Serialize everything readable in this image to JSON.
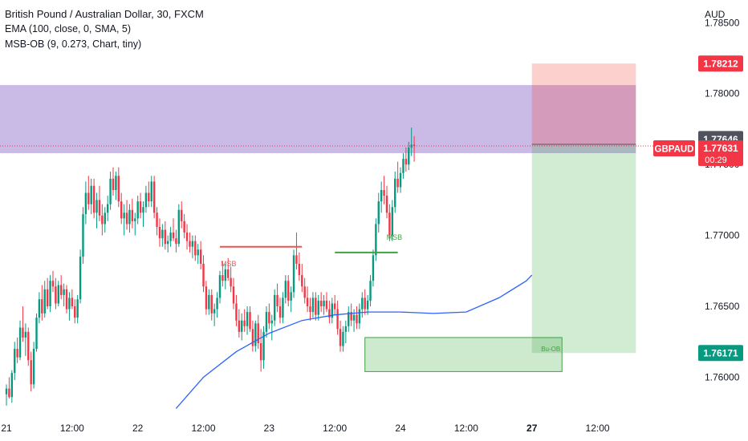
{
  "legend": {
    "title": "British Pound / Australian Dollar, 30, FXCM",
    "ema": "EMA (100, close, 0, SMA, 5)",
    "msbob": "MSB-OB (9, 0.273, Chart, tiny)"
  },
  "chart_data": {
    "type": "candlestick",
    "symbol": "GBPAUD",
    "currency": "AUD",
    "ylim": [
      1.7572,
      1.7866
    ],
    "y_ticks": [
      "1.78500",
      "1.78000",
      "1.77500",
      "1.77000",
      "1.76500",
      "1.76000"
    ],
    "x_ticks": [
      "21",
      "12:00",
      "22",
      "12:00",
      "23",
      "12:00",
      "24",
      "12:00",
      "27",
      "12:00"
    ],
    "x_tick_positions": [
      0,
      24,
      48,
      72,
      96,
      120,
      144,
      168,
      192,
      216
    ],
    "bar_range": [
      0,
      230
    ],
    "candles": [
      [
        1.7588,
        1.7595,
        1.758,
        1.7592
      ],
      [
        1.7592,
        1.76,
        1.7585,
        1.7586
      ],
      [
        1.7586,
        1.7605,
        1.7582,
        1.7603
      ],
      [
        1.7603,
        1.7625,
        1.7598,
        1.762
      ],
      [
        1.762,
        1.7628,
        1.761,
        1.7614
      ],
      [
        1.7614,
        1.764,
        1.7612,
        1.7635
      ],
      [
        1.7635,
        1.765,
        1.7625,
        1.7628
      ],
      [
        1.7628,
        1.7638,
        1.7615,
        1.7632
      ],
      [
        1.7632,
        1.7635,
        1.7608,
        1.7612
      ],
      [
        1.7612,
        1.7618,
        1.759,
        1.7595
      ],
      [
        1.7595,
        1.7625,
        1.7592,
        1.762
      ],
      [
        1.762,
        1.7645,
        1.7618,
        1.7642
      ],
      [
        1.7642,
        1.766,
        1.7638,
        1.7655
      ],
      [
        1.7655,
        1.7665,
        1.764,
        1.7645
      ],
      [
        1.7645,
        1.7668,
        1.7642,
        1.7662
      ],
      [
        1.7662,
        1.767,
        1.7648,
        1.765
      ],
      [
        1.765,
        1.7672,
        1.7646,
        1.7668
      ],
      [
        1.7668,
        1.7675,
        1.766,
        1.7664
      ],
      [
        1.7664,
        1.767,
        1.7648,
        1.7652
      ],
      [
        1.7652,
        1.7668,
        1.765,
        1.7665
      ],
      [
        1.7665,
        1.7672,
        1.7655,
        1.7658
      ],
      [
        1.7658,
        1.7666,
        1.765,
        1.7662
      ],
      [
        1.7662,
        1.7665,
        1.7645,
        1.7648
      ],
      [
        1.7648,
        1.766,
        1.764,
        1.7656
      ],
      [
        1.7656,
        1.7662,
        1.7648,
        1.765
      ],
      [
        1.765,
        1.7655,
        1.7638,
        1.7642
      ],
      [
        1.7642,
        1.7658,
        1.7638,
        1.7655
      ],
      [
        1.7655,
        1.769,
        1.7652,
        1.7685
      ],
      [
        1.7685,
        1.772,
        1.768,
        1.7715
      ],
      [
        1.7715,
        1.7738,
        1.7708,
        1.773
      ],
      [
        1.773,
        1.7742,
        1.7718,
        1.7722
      ],
      [
        1.7722,
        1.774,
        1.7715,
        1.7735
      ],
      [
        1.7735,
        1.774,
        1.7712,
        1.7716
      ],
      [
        1.7716,
        1.773,
        1.7705,
        1.7725
      ],
      [
        1.7725,
        1.7735,
        1.771,
        1.7714
      ],
      [
        1.7714,
        1.7722,
        1.77,
        1.7708
      ],
      [
        1.7708,
        1.772,
        1.7702,
        1.7716
      ],
      [
        1.7716,
        1.7728,
        1.771,
        1.7722
      ],
      [
        1.7722,
        1.7745,
        1.7718,
        1.774
      ],
      [
        1.774,
        1.7748,
        1.7728,
        1.7732
      ],
      [
        1.7732,
        1.7745,
        1.7725,
        1.7742
      ],
      [
        1.7742,
        1.7748,
        1.772,
        1.7724
      ],
      [
        1.7724,
        1.773,
        1.7708,
        1.7712
      ],
      [
        1.7712,
        1.7722,
        1.77,
        1.7716
      ],
      [
        1.7716,
        1.7725,
        1.7704,
        1.7708
      ],
      [
        1.7708,
        1.7722,
        1.7702,
        1.7718
      ],
      [
        1.7718,
        1.7726,
        1.7705,
        1.771
      ],
      [
        1.771,
        1.7716,
        1.77,
        1.7712
      ],
      [
        1.7712,
        1.7728,
        1.7708,
        1.7724
      ],
      [
        1.7724,
        1.773,
        1.7712,
        1.7716
      ],
      [
        1.7716,
        1.7724,
        1.7706,
        1.772
      ],
      [
        1.772,
        1.7735,
        1.7716,
        1.773
      ],
      [
        1.773,
        1.7738,
        1.772,
        1.7724
      ],
      [
        1.7724,
        1.7742,
        1.772,
        1.7738
      ],
      [
        1.7738,
        1.7742,
        1.7712,
        1.7716
      ],
      [
        1.7716,
        1.772,
        1.77,
        1.7706
      ],
      [
        1.7706,
        1.7712,
        1.7692,
        1.7698
      ],
      [
        1.7698,
        1.7708,
        1.7692,
        1.7704
      ],
      [
        1.7704,
        1.771,
        1.769,
        1.7694
      ],
      [
        1.7694,
        1.77,
        1.7688,
        1.7696
      ],
      [
        1.7696,
        1.7706,
        1.7692,
        1.7702
      ],
      [
        1.7702,
        1.7712,
        1.7696,
        1.7698
      ],
      [
        1.7698,
        1.7704,
        1.7688,
        1.7694
      ],
      [
        1.7694,
        1.7722,
        1.7692,
        1.7718
      ],
      [
        1.7718,
        1.7724,
        1.7705,
        1.771
      ],
      [
        1.771,
        1.7715,
        1.7698,
        1.7702
      ],
      [
        1.7702,
        1.7708,
        1.769,
        1.7696
      ],
      [
        1.7696,
        1.7702,
        1.7688,
        1.7692
      ],
      [
        1.7692,
        1.77,
        1.7684,
        1.7696
      ],
      [
        1.7696,
        1.77,
        1.7682,
        1.7686
      ],
      [
        1.7686,
        1.7694,
        1.768,
        1.769
      ],
      [
        1.769,
        1.7696,
        1.7676,
        1.768
      ],
      [
        1.768,
        1.7686,
        1.766,
        1.7664
      ],
      [
        1.7664,
        1.7668,
        1.7644,
        1.7648
      ],
      [
        1.7648,
        1.7662,
        1.7644,
        1.7658
      ],
      [
        1.7658,
        1.7662,
        1.764,
        1.7645
      ],
      [
        1.7645,
        1.7652,
        1.7636,
        1.7648
      ],
      [
        1.7648,
        1.766,
        1.7642,
        1.7656
      ],
      [
        1.7656,
        1.7675,
        1.7652,
        1.7672
      ],
      [
        1.7672,
        1.7682,
        1.7664,
        1.7668
      ],
      [
        1.7668,
        1.768,
        1.7662,
        1.7676
      ],
      [
        1.7676,
        1.7684,
        1.7668,
        1.767
      ],
      [
        1.767,
        1.7678,
        1.766,
        1.7664
      ],
      [
        1.7664,
        1.767,
        1.7648,
        1.7652
      ],
      [
        1.7652,
        1.7658,
        1.7636,
        1.764
      ],
      [
        1.764,
        1.7648,
        1.7628,
        1.7632
      ],
      [
        1.7632,
        1.7645,
        1.7626,
        1.764
      ],
      [
        1.764,
        1.7648,
        1.7632,
        1.7636
      ],
      [
        1.7636,
        1.765,
        1.763,
        1.7646
      ],
      [
        1.7646,
        1.765,
        1.7632,
        1.7634
      ],
      [
        1.7634,
        1.764,
        1.7618,
        1.7622
      ],
      [
        1.7622,
        1.764,
        1.7618,
        1.7638
      ],
      [
        1.7638,
        1.7644,
        1.762,
        1.7624
      ],
      [
        1.7624,
        1.7634,
        1.7604,
        1.7612
      ],
      [
        1.7612,
        1.7636,
        1.7606,
        1.7632
      ],
      [
        1.7632,
        1.765,
        1.7628,
        1.7646
      ],
      [
        1.7646,
        1.7652,
        1.7634,
        1.7638
      ],
      [
        1.7638,
        1.7644,
        1.7626,
        1.764
      ],
      [
        1.764,
        1.7662,
        1.7636,
        1.7658
      ],
      [
        1.7658,
        1.7666,
        1.7646,
        1.765
      ],
      [
        1.765,
        1.7656,
        1.7638,
        1.7642
      ],
      [
        1.7642,
        1.766,
        1.7638,
        1.7656
      ],
      [
        1.7656,
        1.7672,
        1.7652,
        1.7668
      ],
      [
        1.7668,
        1.7672,
        1.765,
        1.7654
      ],
      [
        1.7654,
        1.7664,
        1.7646,
        1.766
      ],
      [
        1.766,
        1.769,
        1.7656,
        1.7686
      ],
      [
        1.7686,
        1.7702,
        1.7676,
        1.768
      ],
      [
        1.768,
        1.7688,
        1.7668,
        1.7672
      ],
      [
        1.7672,
        1.768,
        1.766,
        1.7664
      ],
      [
        1.7664,
        1.767,
        1.7652,
        1.7656
      ],
      [
        1.7656,
        1.7664,
        1.7646,
        1.765
      ],
      [
        1.765,
        1.7656,
        1.764,
        1.7646
      ],
      [
        1.7646,
        1.766,
        1.7642,
        1.7656
      ],
      [
        1.7656,
        1.766,
        1.764,
        1.7644
      ],
      [
        1.7644,
        1.7658,
        1.764,
        1.7654
      ],
      [
        1.7654,
        1.766,
        1.7646,
        1.765
      ],
      [
        1.765,
        1.7658,
        1.7644,
        1.7654
      ],
      [
        1.7654,
        1.766,
        1.7646,
        1.7648
      ],
      [
        1.7648,
        1.7654,
        1.7638,
        1.7642
      ],
      [
        1.7642,
        1.7656,
        1.7638,
        1.7652
      ],
      [
        1.7652,
        1.7658,
        1.7644,
        1.7648
      ],
      [
        1.7648,
        1.7654,
        1.763,
        1.7634
      ],
      [
        1.7634,
        1.764,
        1.7618,
        1.7622
      ],
      [
        1.7622,
        1.7636,
        1.7618,
        1.7632
      ],
      [
        1.7632,
        1.764,
        1.7624,
        1.7636
      ],
      [
        1.7636,
        1.765,
        1.7632,
        1.7646
      ],
      [
        1.7646,
        1.7652,
        1.7636,
        1.764
      ],
      [
        1.764,
        1.7648,
        1.7632,
        1.7644
      ],
      [
        1.7644,
        1.765,
        1.7634,
        1.7638
      ],
      [
        1.7638,
        1.7652,
        1.7634,
        1.7648
      ],
      [
        1.7648,
        1.766,
        1.7642,
        1.7656
      ],
      [
        1.7656,
        1.7662,
        1.7644,
        1.7648
      ],
      [
        1.7648,
        1.7658,
        1.7644,
        1.7654
      ],
      [
        1.7654,
        1.7672,
        1.765,
        1.7668
      ],
      [
        1.7668,
        1.769,
        1.7664,
        1.7686
      ],
      [
        1.7686,
        1.7712,
        1.7682,
        1.7708
      ],
      [
        1.7708,
        1.773,
        1.7702,
        1.7724
      ],
      [
        1.7724,
        1.7738,
        1.7716,
        1.7732
      ],
      [
        1.7732,
        1.7742,
        1.7722,
        1.7728
      ],
      [
        1.7728,
        1.7735,
        1.7712,
        1.7716
      ],
      [
        1.7716,
        1.7722,
        1.7696,
        1.77
      ],
      [
        1.77,
        1.7725,
        1.7696,
        1.772
      ],
      [
        1.772,
        1.7745,
        1.7716,
        1.774
      ],
      [
        1.774,
        1.7752,
        1.773,
        1.7734
      ],
      [
        1.7734,
        1.7748,
        1.773,
        1.7744
      ],
      [
        1.7744,
        1.7758,
        1.774,
        1.7754
      ],
      [
        1.7754,
        1.7762,
        1.7745,
        1.775
      ],
      [
        1.775,
        1.7766,
        1.7746,
        1.7762
      ],
      [
        1.7762,
        1.7776,
        1.7756,
        1.7764
      ],
      [
        1.7764,
        1.777,
        1.7752,
        1.7763
      ]
    ],
    "ema_100": {
      "name": "EMA (100, close, 0, SMA, 5)",
      "x": [
        62,
        72,
        84,
        96,
        108,
        120,
        132,
        144,
        156,
        168,
        180,
        190,
        192
      ],
      "y": [
        1.7578,
        1.76,
        1.7618,
        1.7631,
        1.764,
        1.7644,
        1.7646,
        1.7646,
        1.7645,
        1.7646,
        1.7656,
        1.7668,
        1.7672
      ]
    },
    "msb_bear": {
      "label": "MSB",
      "price": 1.7692,
      "x_start": 78,
      "x_end": 108
    },
    "msb_bull": {
      "label": "MSB",
      "price": 1.7688,
      "x_start": 120,
      "x_end": 143
    },
    "bu_ob": {
      "label": "Bu-OB",
      "x_start": 131,
      "x_end": 203,
      "top": 1.7628,
      "bottom": 1.7604
    },
    "supply_zone": {
      "x_start": 0,
      "x_end": 230,
      "top": 1.7806,
      "bottom": 1.7758
    },
    "position": {
      "x_start": 192,
      "x_end": 230,
      "entry": 1.77631,
      "stop": 1.78212,
      "target": 1.76171
    },
    "price_labels": {
      "stop": "1.78212",
      "high": "1.77646",
      "last": "1.77631",
      "countdown": "00:29",
      "target": "1.76171"
    }
  }
}
